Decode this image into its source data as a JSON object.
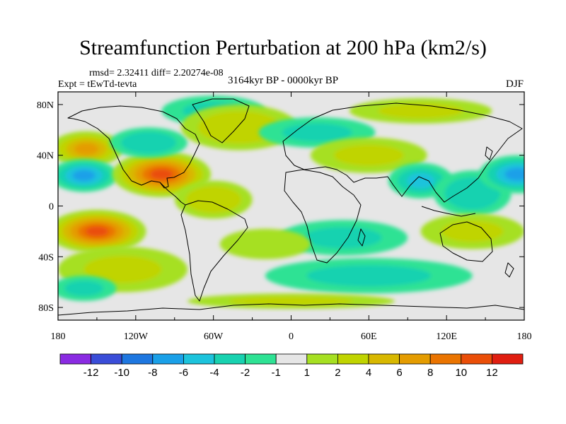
{
  "title": "Streamfunction Perturbation at 200 hPa (km2/s)",
  "stats": "rmsd= 2.32411 diff= 2.20274e-08",
  "expt": "Expt = tEwTd-tevta",
  "period": "3164kyr BP - 0000kyr BP",
  "season": "DJF",
  "map": {
    "lon_range": [
      -180,
      180
    ],
    "lat_range": [
      -90,
      90
    ],
    "lat_ticks": [
      {
        "value": 80,
        "label": "80N"
      },
      {
        "value": 40,
        "label": "40N"
      },
      {
        "value": 0,
        "label": "0"
      },
      {
        "value": -40,
        "label": "40S"
      },
      {
        "value": -80,
        "label": "80S"
      }
    ],
    "lon_ticks": [
      {
        "value": -180,
        "label": "180"
      },
      {
        "value": -120,
        "label": "120W"
      },
      {
        "value": -60,
        "label": "60W"
      },
      {
        "value": 0,
        "label": "0"
      },
      {
        "value": 60,
        "label": "60E"
      },
      {
        "value": 120,
        "label": "120E"
      },
      {
        "value": 180,
        "label": "180"
      }
    ],
    "background_color": "#e6e6e6",
    "anomalies": [
      {
        "lon": -158,
        "lat": 45,
        "rx": 28,
        "ry": 14,
        "value": 6
      },
      {
        "lon": -160,
        "lat": 24,
        "rx": 26,
        "ry": 13,
        "value": -6
      },
      {
        "lon": -150,
        "lat": -20,
        "rx": 38,
        "ry": 17,
        "value": 10
      },
      {
        "lon": -100,
        "lat": 25,
        "rx": 38,
        "ry": 18,
        "value": 10
      },
      {
        "lon": -60,
        "lat": 5,
        "rx": 30,
        "ry": 15,
        "value": 3
      },
      {
        "lon": -110,
        "lat": 50,
        "rx": 30,
        "ry": 12,
        "value": -3
      },
      {
        "lon": -60,
        "lat": 75,
        "rx": 40,
        "ry": 12,
        "value": -2
      },
      {
        "lon": -40,
        "lat": 62,
        "rx": 45,
        "ry": 18,
        "value": 3
      },
      {
        "lon": 20,
        "lat": 58,
        "rx": 45,
        "ry": 12,
        "value": -2
      },
      {
        "lon": 100,
        "lat": 75,
        "rx": 55,
        "ry": 10,
        "value": 2
      },
      {
        "lon": 60,
        "lat": 40,
        "rx": 45,
        "ry": 14,
        "value": 2
      },
      {
        "lon": 100,
        "lat": 20,
        "rx": 25,
        "ry": 14,
        "value": -4
      },
      {
        "lon": 140,
        "lat": 10,
        "rx": 30,
        "ry": 18,
        "value": -3
      },
      {
        "lon": 175,
        "lat": 25,
        "rx": 30,
        "ry": 15,
        "value": -6
      },
      {
        "lon": 140,
        "lat": -20,
        "rx": 40,
        "ry": 14,
        "value": 2
      },
      {
        "lon": 40,
        "lat": -25,
        "rx": 50,
        "ry": 14,
        "value": -2
      },
      {
        "lon": -20,
        "lat": -30,
        "rx": 35,
        "ry": 12,
        "value": 1
      },
      {
        "lon": -130,
        "lat": -50,
        "rx": 50,
        "ry": 18,
        "value": 2
      },
      {
        "lon": 60,
        "lat": -55,
        "rx": 80,
        "ry": 14,
        "value": -2
      },
      {
        "lon": 0,
        "lat": -75,
        "rx": 80,
        "ry": 6,
        "value": 2
      },
      {
        "lon": -160,
        "lat": -65,
        "rx": 25,
        "ry": 10,
        "value": -2
      }
    ]
  },
  "colorbar": {
    "colors": [
      "#8a2be2",
      "#3a4dd8",
      "#1e77e0",
      "#1aa0e8",
      "#1cc3dc",
      "#18d2b0",
      "#2ee294",
      "#e6e6e6",
      "#a6e022",
      "#c0d400",
      "#d8b800",
      "#e49c00",
      "#ea7400",
      "#ea4e08",
      "#e01e10"
    ],
    "labels": [
      {
        "boundary": 1,
        "text": "-12"
      },
      {
        "boundary": 2,
        "text": "-10"
      },
      {
        "boundary": 3,
        "text": "-8"
      },
      {
        "boundary": 4,
        "text": "-6"
      },
      {
        "boundary": 5,
        "text": "-4"
      },
      {
        "boundary": 6,
        "text": "-2"
      },
      {
        "boundary": 7,
        "text": "-1"
      },
      {
        "boundary": 8,
        "text": "1"
      },
      {
        "boundary": 9,
        "text": "2"
      },
      {
        "boundary": 10,
        "text": "4"
      },
      {
        "boundary": 11,
        "text": "6"
      },
      {
        "boundary": 12,
        "text": "8"
      },
      {
        "boundary": 13,
        "text": "10"
      },
      {
        "boundary": 14,
        "text": "12"
      }
    ],
    "levels": [
      -12,
      -10,
      -8,
      -6,
      -4,
      -2,
      -1,
      1,
      2,
      4,
      6,
      8,
      10,
      12
    ]
  }
}
